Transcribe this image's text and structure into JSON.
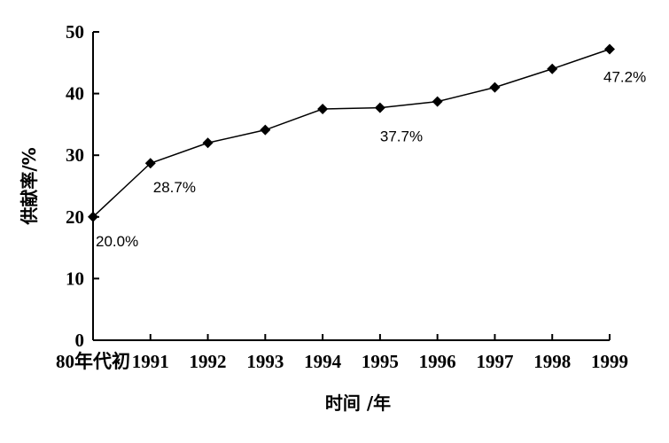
{
  "chart_data": {
    "type": "line",
    "categories": [
      "80年代初",
      "1991",
      "1992",
      "1993",
      "1994",
      "1995",
      "1996",
      "1997",
      "1998",
      "1999"
    ],
    "series": [
      {
        "values": [
          20.0,
          28.7,
          32.0,
          34.1,
          37.5,
          37.7,
          38.7,
          41.0,
          44.0,
          47.2
        ]
      }
    ],
    "data_labels": [
      {
        "index": 0,
        "text": "20.0%"
      },
      {
        "index": 1,
        "text": "28.7%"
      },
      {
        "index": 5,
        "text": "37.7%"
      },
      {
        "index": 9,
        "text": "47.2%"
      }
    ],
    "xlabel": "时间 /年",
    "ylabel": "供献率/%",
    "ylim": [
      0,
      50
    ],
    "yticks": [
      0,
      10,
      20,
      30,
      40,
      50
    ],
    "grid": false,
    "legend": "none",
    "marker": "diamond",
    "line_color": "#000000"
  }
}
